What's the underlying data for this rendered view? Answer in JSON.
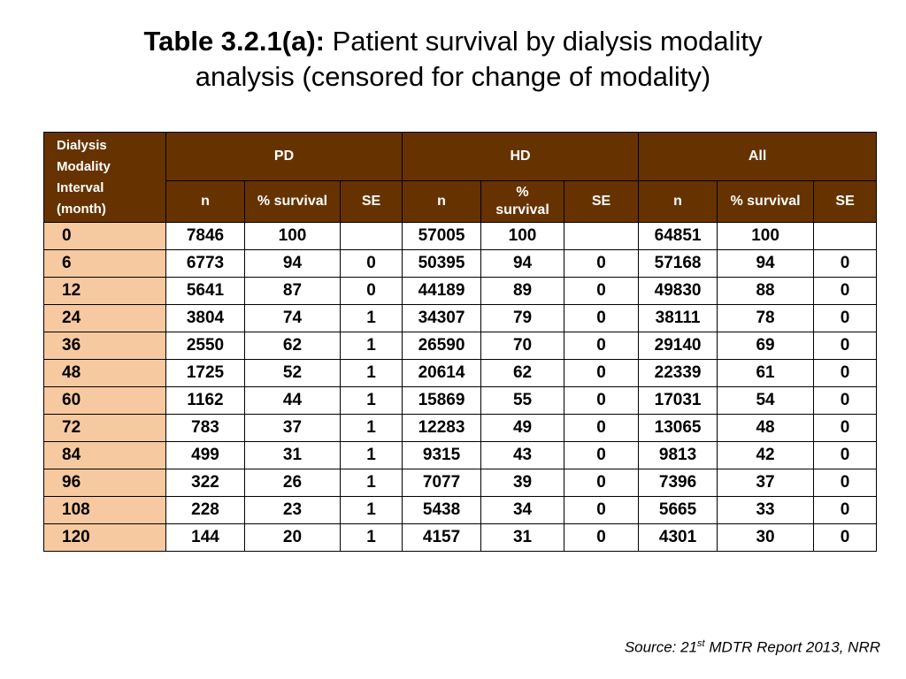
{
  "title": {
    "bold": "Table 3.2.1(a):",
    "line1": "Patient survival by dialysis modality",
    "line2": "analysis (censored for change of modality)"
  },
  "table": {
    "corner": [
      "Dialysis",
      "Modality",
      "Interval",
      "(month)"
    ],
    "groups": [
      "PD",
      "HD",
      "All"
    ],
    "subheaders": [
      "n",
      "% survival",
      "SE",
      "n",
      "% survival",
      "SE",
      "n",
      "% survival",
      "SE"
    ],
    "rows": [
      [
        "0",
        "7846",
        "100",
        "",
        "57005",
        "100",
        "",
        "64851",
        "100",
        ""
      ],
      [
        "6",
        "6773",
        "94",
        "0",
        "50395",
        "94",
        "0",
        "57168",
        "94",
        "0"
      ],
      [
        "12",
        "5641",
        "87",
        "0",
        "44189",
        "89",
        "0",
        "49830",
        "88",
        "0"
      ],
      [
        "24",
        "3804",
        "74",
        "1",
        "34307",
        "79",
        "0",
        "38111",
        "78",
        "0"
      ],
      [
        "36",
        "2550",
        "62",
        "1",
        "26590",
        "70",
        "0",
        "29140",
        "69",
        "0"
      ],
      [
        "48",
        "1725",
        "52",
        "1",
        "20614",
        "62",
        "0",
        "22339",
        "61",
        "0"
      ],
      [
        "60",
        "1162",
        "44",
        "1",
        "15869",
        "55",
        "0",
        "17031",
        "54",
        "0"
      ],
      [
        "72",
        "783",
        "37",
        "1",
        "12283",
        "49",
        "0",
        "13065",
        "48",
        "0"
      ],
      [
        "84",
        "499",
        "31",
        "1",
        "9315",
        "43",
        "0",
        "9813",
        "42",
        "0"
      ],
      [
        "96",
        "322",
        "26",
        "1",
        "7077",
        "39",
        "0",
        "7396",
        "37",
        "0"
      ],
      [
        "108",
        "228",
        "23",
        "1",
        "5438",
        "34",
        "0",
        "5665",
        "33",
        "0"
      ],
      [
        "120",
        "144",
        "20",
        "1",
        "4157",
        "31",
        "0",
        "4301",
        "30",
        "0"
      ]
    ]
  },
  "source": {
    "prefix": "Source: 21",
    "sup": "st",
    "suffix": " MDTR Report 2013, NRR"
  }
}
